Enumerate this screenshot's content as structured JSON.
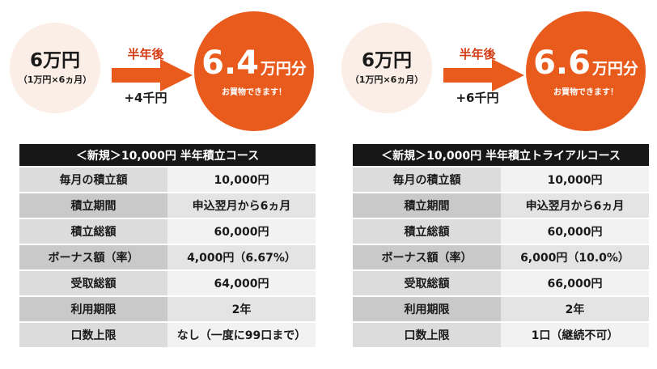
{
  "panels": [
    {
      "start_amount": "6万円",
      "start_sub": "（1万円×6ヵ月）",
      "after_label": "半年後",
      "bonus_label": "+4千円",
      "result_amount": "6.4",
      "result_unit": "万円分",
      "result_sub": "お買物できます！",
      "table": {
        "title": "＜新規＞10,000円 半年積立コース",
        "rows": [
          {
            "label": "毎月の積立額",
            "value": "10,000円"
          },
          {
            "label": "積立期間",
            "value": "申込翌月から6ヵ月"
          },
          {
            "label": "積立総額",
            "value": "60,000円"
          },
          {
            "label": "ボーナス額（率）",
            "value": "4,000円（6.67%）"
          },
          {
            "label": "受取総額",
            "value": "64,000円"
          },
          {
            "label": "利用期限",
            "value": "2年"
          },
          {
            "label": "口数上限",
            "value": "なし（一度に99口まで）"
          }
        ]
      }
    },
    {
      "start_amount": "6万円",
      "start_sub": "（1万円×6ヵ月）",
      "after_label": "半年後",
      "bonus_label": "+6千円",
      "result_amount": "6.6",
      "result_unit": "万円分",
      "result_sub": "お買物できます！",
      "table": {
        "title": "＜新規＞10,000円 半年積立トライアルコース",
        "rows": [
          {
            "label": "毎月の積立額",
            "value": "10,000円"
          },
          {
            "label": "積立期間",
            "value": "申込翌月から6ヵ月"
          },
          {
            "label": "積立総額",
            "value": "60,000円"
          },
          {
            "label": "ボーナス額（率）",
            "value": "6,000円（10.0%）"
          },
          {
            "label": "受取総額",
            "value": "66,000円"
          },
          {
            "label": "利用期限",
            "value": "2年"
          },
          {
            "label": "口数上限",
            "value": "1口（継続不可）"
          }
        ]
      }
    }
  ],
  "colors": {
    "accent": "#e85b1c",
    "accent_text": "#d33a12",
    "start_circle": "#fbeee6",
    "header_bg": "#171717"
  }
}
